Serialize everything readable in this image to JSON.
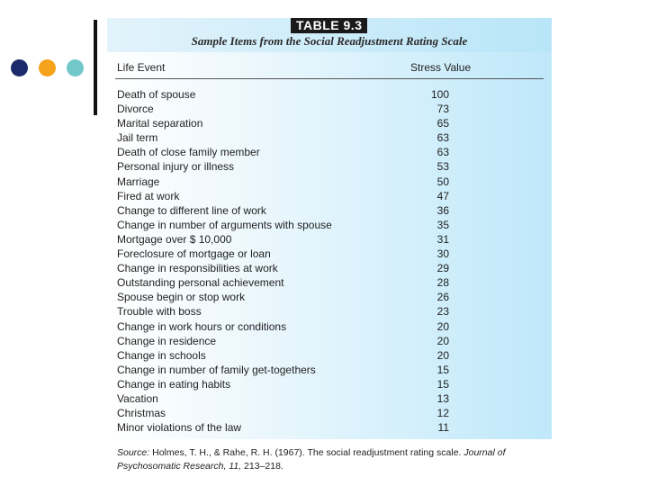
{
  "decor": {
    "dots": [
      {
        "name": "navy-dot",
        "color": "#1b2a6b"
      },
      {
        "name": "orange-dot",
        "color": "#f5a31a"
      },
      {
        "name": "teal-dot",
        "color": "#72c8c8"
      }
    ]
  },
  "table": {
    "tag": "TABLE 9.3",
    "caption": "Sample Items from the Social Readjustment Rating Scale",
    "columns": [
      "Life Event",
      "Stress Value"
    ],
    "rows": [
      {
        "event": "Death of spouse",
        "value": 100
      },
      {
        "event": "Divorce",
        "value": 73
      },
      {
        "event": "Marital separation",
        "value": 65
      },
      {
        "event": "Jail term",
        "value": 63
      },
      {
        "event": "Death of close family member",
        "value": 63
      },
      {
        "event": "Personal injury or illness",
        "value": 53
      },
      {
        "event": "Marriage",
        "value": 50
      },
      {
        "event": "Fired at work",
        "value": 47
      },
      {
        "event": "Change to different line of work",
        "value": 36
      },
      {
        "event": "Change in number of arguments with spouse",
        "value": 35
      },
      {
        "event": "Mortgage over $ 10,000",
        "value": 31
      },
      {
        "event": "Foreclosure of mortgage or loan",
        "value": 30
      },
      {
        "event": "Change in responsibilities at work",
        "value": 29
      },
      {
        "event": "Outstanding personal achievement",
        "value": 28
      },
      {
        "event": "Spouse begin or stop work",
        "value": 26
      },
      {
        "event": "Trouble with boss",
        "value": 23
      },
      {
        "event": "Change in work hours or conditions",
        "value": 20
      },
      {
        "event": "Change in residence",
        "value": 20
      },
      {
        "event": "Change in schools",
        "value": 20
      },
      {
        "event": "Change in number of family get-togethers",
        "value": 15
      },
      {
        "event": "Change in eating habits",
        "value": 15
      },
      {
        "event": "Vacation",
        "value": 13
      },
      {
        "event": "Christmas",
        "value": 12
      },
      {
        "event": "Minor violations of the law",
        "value": 11
      }
    ],
    "source": {
      "label": "Source:",
      "text": "Holmes, T. H., & Rahe, R. H. (1967). The social readjustment rating scale.",
      "journal": "Journal of Psychosomatic Research, 11,",
      "pages": "213–218."
    }
  }
}
